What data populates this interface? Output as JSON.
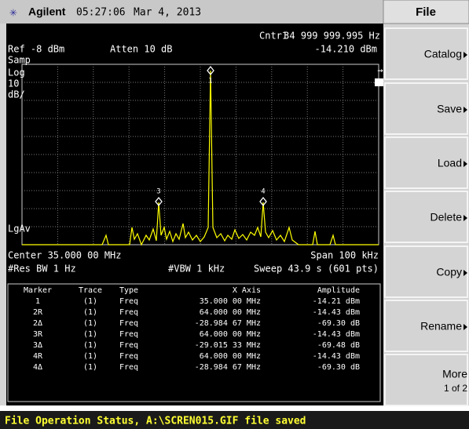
{
  "header": {
    "brand": "Agilent",
    "time": "05:27:06",
    "date": "Mar 4, 2013"
  },
  "menu": {
    "title": "File",
    "keys": [
      "Catalog",
      "Save",
      "Load",
      "Delete",
      "Copy",
      "Rename"
    ],
    "more": {
      "label": "More",
      "page": "1 of 2"
    }
  },
  "screen": {
    "marker_label": "Cntr1",
    "marker_freq": "34 999 999.995 Hz",
    "ref": "Ref -8 dBm",
    "atten": "Atten 10 dB",
    "marker_amp": "-14.210 dBm",
    "detector": "Samp",
    "scale": [
      "Log",
      "10",
      "dB/"
    ],
    "average": "LgAv",
    "center": "Center 35.000 00 MHz",
    "span": "Span 100 kHz",
    "rbw": "#Res BW 1 Hz",
    "vbw": "#VBW 1 kHz",
    "sweep": "Sweep 43.9 s (601 pts)",
    "markers": [
      "1",
      "3",
      "4"
    ],
    "ref_marker": "4R"
  },
  "marker_table": {
    "columns": [
      "Marker",
      "Trace",
      "Type",
      "X Axis",
      "Amplitude"
    ],
    "rows": [
      [
        "1",
        "(1)",
        "Freq",
        "35.000 00 MHz",
        "-14.21 dBm"
      ],
      [
        "2R",
        "(1)",
        "Freq",
        "64.000 00 MHz",
        "-14.43 dBm"
      ],
      [
        "2Δ",
        "(1)",
        "Freq",
        "-28.984 67 MHz",
        "-69.30 dB"
      ],
      [
        "3R",
        "(1)",
        "Freq",
        "64.000 00 MHz",
        "-14.43 dBm"
      ],
      [
        "3Δ",
        "(1)",
        "Freq",
        "-29.015 33 MHz",
        "-69.48 dB"
      ],
      [
        "4R",
        "(1)",
        "Freq",
        "64.000 00 MHz",
        "-14.43 dBm"
      ],
      [
        "4Δ",
        "(1)",
        "Freq",
        "-28.984 67 MHz",
        "-69.30 dB"
      ]
    ]
  },
  "status": "File Operation Status, A:\\SCREN015.GIF file saved"
}
